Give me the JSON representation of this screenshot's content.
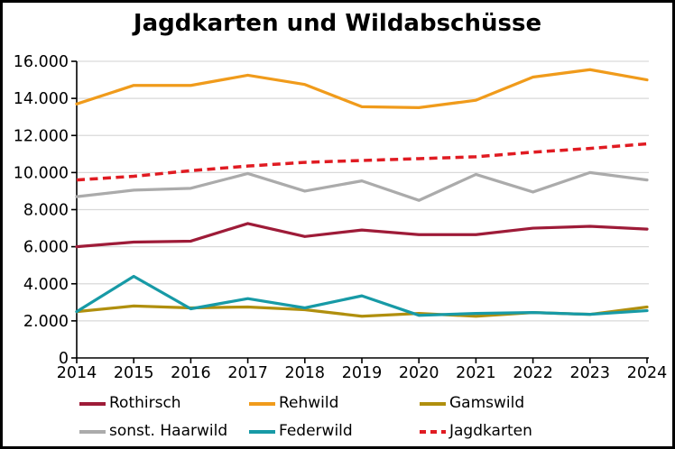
{
  "title": "Jagdkarten und Wildabschüsse",
  "colors": {
    "background": "#FFFFFF",
    "border": "#000000",
    "axis": "#000000",
    "grid": "#D9D9D9",
    "text": "#000000"
  },
  "chart_data": {
    "type": "line",
    "title": "Jagdkarten und Wildabschüsse",
    "x": [
      "2014",
      "2015",
      "2016",
      "2017",
      "2018",
      "2019",
      "2020",
      "2021",
      "2022",
      "2023",
      "2024"
    ],
    "ylim": [
      0,
      16000
    ],
    "ytick_step": 2000,
    "ytick_labels": [
      "0",
      "2.000",
      "4.000",
      "6.000",
      "8.000",
      "10.000",
      "12.000",
      "14.000",
      "16.000"
    ],
    "grid": "horizontal",
    "legend_position": "bottom",
    "series": [
      {
        "name": "Rothirsch",
        "color": "#9E1B38",
        "style": "solid",
        "values": [
          6000,
          6250,
          6300,
          7250,
          6550,
          6900,
          6650,
          6650,
          7000,
          7100,
          6950
        ]
      },
      {
        "name": "Rehwild",
        "color": "#F09B1B",
        "style": "solid",
        "values": [
          13700,
          14700,
          14700,
          15250,
          14750,
          13550,
          13500,
          13900,
          15150,
          15550,
          15000
        ]
      },
      {
        "name": "Gamswild",
        "color": "#B08F0E",
        "style": "solid",
        "values": [
          2500,
          2800,
          2700,
          2750,
          2600,
          2250,
          2400,
          2250,
          2450,
          2350,
          2750
        ]
      },
      {
        "name": "sonst. Haarwild",
        "color": "#ABABAB",
        "style": "solid",
        "values": [
          8700,
          9050,
          9150,
          9950,
          9000,
          9550,
          8500,
          9900,
          8950,
          10000,
          9600
        ]
      },
      {
        "name": "Federwild",
        "color": "#179AA6",
        "style": "solid",
        "values": [
          2500,
          4400,
          2650,
          3200,
          2700,
          3350,
          2300,
          2400,
          2450,
          2350,
          2550
        ]
      },
      {
        "name": "Jagdkarten",
        "color": "#E01B22",
        "style": "dashed",
        "values": [
          9600,
          9800,
          10100,
          10350,
          10550,
          10650,
          10750,
          10850,
          11100,
          11300,
          11550
        ]
      }
    ]
  }
}
